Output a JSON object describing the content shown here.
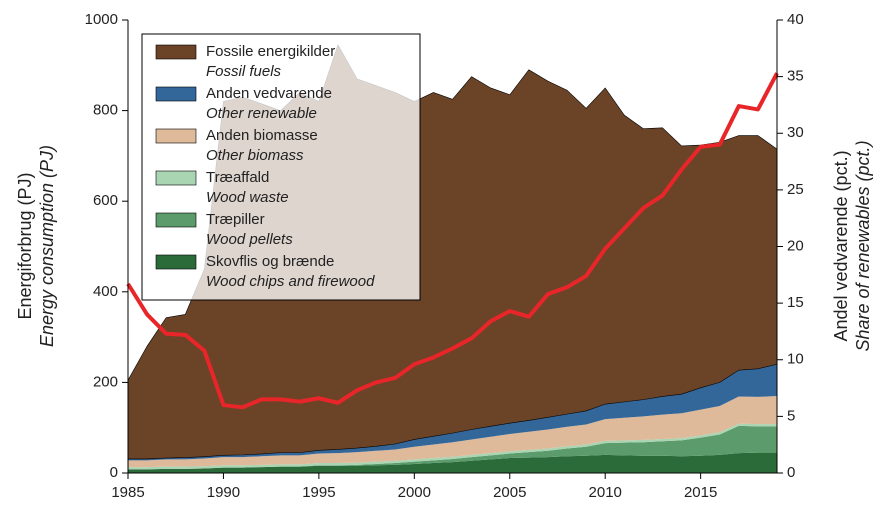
{
  "chart_data": {
    "type": "stacked-area-line",
    "x": [
      1985,
      1986,
      1987,
      1988,
      1989,
      1990,
      1991,
      1992,
      1993,
      1994,
      1995,
      1996,
      1997,
      1998,
      1999,
      2000,
      2001,
      2002,
      2003,
      2004,
      2005,
      2006,
      2007,
      2008,
      2009,
      2010,
      2011,
      2012,
      2013,
      2014,
      2015,
      2016,
      2017,
      2018,
      2019
    ],
    "xlim": [
      1985,
      2019
    ],
    "xticks": [
      1985,
      1990,
      1995,
      2000,
      2005,
      2010,
      2015
    ],
    "ylim": [
      0,
      1000
    ],
    "yticks": [
      0,
      200,
      400,
      600,
      800,
      1000
    ],
    "y2lim": [
      0,
      40
    ],
    "y2ticks": [
      0,
      5,
      10,
      15,
      20,
      25,
      30,
      35,
      40
    ],
    "ylabel": "Energiforbrug (PJ)",
    "ylabel_en": "Energy consumption (PJ)",
    "y2label": "Andel vedvarende (pct.)",
    "y2label_en": "Share of renewables (pct.)",
    "legend": "upper left",
    "series": [
      {
        "name": "Skovflis og brænde",
        "name_en": "Wood chips and firewood",
        "color": "#2b6b3a",
        "values": [
          8,
          8,
          9,
          9,
          10,
          12,
          12,
          13,
          14,
          14,
          16,
          16,
          16,
          17,
          18,
          20,
          22,
          24,
          27,
          30,
          33,
          34,
          35,
          37,
          38,
          40,
          39,
          38,
          38,
          37,
          38,
          40,
          44,
          45,
          45
        ]
      },
      {
        "name": "Træpiller",
        "name_en": "Wood pellets",
        "color": "#5c9b6b",
        "values": [
          0,
          0,
          0,
          0,
          0,
          0,
          0,
          0,
          0,
          0,
          1,
          1,
          2,
          3,
          4,
          5,
          6,
          7,
          8,
          9,
          10,
          12,
          14,
          17,
          20,
          26,
          28,
          30,
          32,
          35,
          40,
          45,
          60,
          58,
          58
        ]
      },
      {
        "name": "Træaffald",
        "name_en": "Wood waste",
        "color": "#a9d5b2",
        "values": [
          5,
          5,
          5,
          5,
          5,
          5,
          5,
          5,
          5,
          5,
          5,
          5,
          5,
          5,
          5,
          5,
          5,
          5,
          5,
          5,
          5,
          5,
          5,
          5,
          5,
          5,
          5,
          5,
          5,
          5,
          5,
          5,
          5,
          5,
          5
        ]
      },
      {
        "name": "Anden biomasse",
        "name_en": "Other biomass",
        "color": "#deb99a",
        "values": [
          15,
          15,
          16,
          16,
          17,
          18,
          18,
          19,
          20,
          20,
          21,
          22,
          23,
          24,
          25,
          28,
          30,
          32,
          34,
          36,
          38,
          40,
          42,
          43,
          44,
          48,
          50,
          52,
          54,
          55,
          57,
          58,
          60,
          60,
          62
        ]
      },
      {
        "name": "Anden vedvarende",
        "name_en": "Other renewable",
        "color": "#336699",
        "values": [
          3,
          3,
          3,
          4,
          4,
          4,
          5,
          5,
          6,
          6,
          7,
          8,
          9,
          10,
          12,
          16,
          18,
          20,
          22,
          23,
          24,
          25,
          27,
          28,
          30,
          33,
          35,
          37,
          40,
          42,
          48,
          52,
          58,
          62,
          70
        ]
      },
      {
        "name": "Fossile energikilder",
        "name_en": "Fossil fuels",
        "color": "#6b4327",
        "values": [
          174,
          249,
          310,
          316,
          414,
          781,
          790,
          773,
          755,
          795,
          770,
          893,
          815,
          796,
          776,
          746,
          759,
          737,
          779,
          747,
          725,
          774,
          742,
          715,
          668,
          698,
          633,
          598,
          593,
          548,
          536,
          530,
          518,
          515,
          475
        ]
      },
      {
        "type": "line",
        "axis": "y2",
        "color": "#e8262a",
        "values": [
          16.7,
          14,
          12.3,
          12.2,
          10.8,
          6,
          5.8,
          6.5,
          6.5,
          6.3,
          6.6,
          6.2,
          7.3,
          8,
          8.4,
          9.6,
          10.2,
          11,
          11.9,
          13.4,
          14.3,
          13.8,
          15.8,
          16.4,
          17.4,
          19.8,
          21.6,
          23.4,
          24.5,
          26.8,
          28.8,
          29,
          32.4,
          32.1,
          35.3
        ]
      }
    ]
  }
}
